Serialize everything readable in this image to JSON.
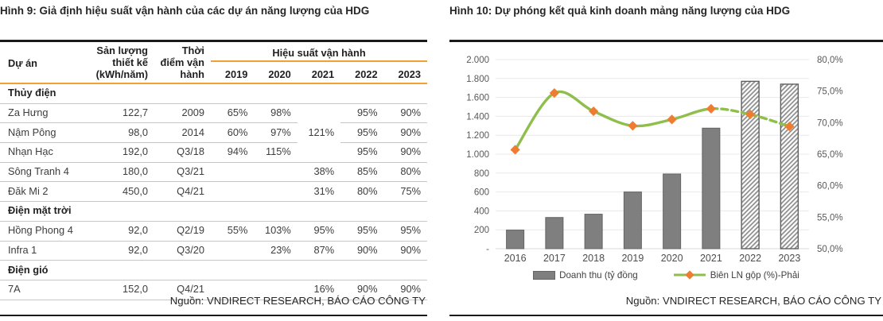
{
  "colors": {
    "accent_orange": "#f0a132",
    "bar_gray": "#7f7f7f",
    "bar_border": "#646464",
    "hatch_stroke": "#8a8a8a",
    "hatch_border": "#5f5f5f",
    "line_green": "#8fbe4d",
    "marker_orange": "#ee7d31",
    "grid_gray": "#e8e8e8",
    "axis_text": "#595959",
    "rule_black": "#1a1a1a"
  },
  "figure9": {
    "title": "Hình 9: Giả định hiệu suất vận hành của các dự án năng lượng của HDG",
    "source": "Nguồn: VNDIRECT RESEARCH, BÁO CÁO CÔNG TY",
    "table": {
      "col_project": "Dự án",
      "col_capacity_lines": [
        "Sản lượng",
        "thiết kế",
        "(kWh/năm)"
      ],
      "col_cod_lines": [
        "Thời",
        "điểm vận",
        "hành"
      ],
      "span_header": "Hiệu suất vận hành",
      "years": [
        "2019",
        "2020",
        "2021",
        "2022",
        "2023"
      ],
      "rows": [
        {
          "section": "Thủy điện"
        },
        {
          "cells": [
            "Za Hưng",
            "122,7",
            "2009",
            "65%",
            "98%",
            {
              "v": "121%",
              "rowspan": 3
            },
            "95%",
            "90%"
          ]
        },
        {
          "cells": [
            "Nậm Pông",
            "98,0",
            "2014",
            "60%",
            "97%",
            null,
            "95%",
            "90%"
          ]
        },
        {
          "cells": [
            "Nhạn Hạc",
            "192,0",
            "Q3/18",
            "94%",
            "115%",
            null,
            "95%",
            "90%"
          ]
        },
        {
          "cells": [
            "Sông Tranh 4",
            "180,0",
            "Q3/21",
            "",
            "",
            "38%",
            "85%",
            "80%"
          ]
        },
        {
          "cells": [
            "Đăk Mi 2",
            "450,0",
            "Q4/21",
            "",
            "",
            "31%",
            "80%",
            "75%"
          ]
        },
        {
          "section": "Điện mặt trời"
        },
        {
          "cells": [
            "Hồng Phong 4",
            "92,0",
            "Q2/19",
            "55%",
            "103%",
            "95%",
            "95%",
            "95%"
          ]
        },
        {
          "cells": [
            "Infra 1",
            "92,0",
            "Q3/20",
            "",
            "23%",
            "87%",
            "90%",
            "90%"
          ]
        },
        {
          "section": "Điện gió"
        },
        {
          "cells": [
            "7A",
            "152,0",
            "Q4/21",
            "",
            "",
            "16%",
            "90%",
            "90%"
          ]
        }
      ]
    }
  },
  "figure10": {
    "title": "Hình 10: Dự phóng kết quả kinh doanh mảng năng lượng của HDG",
    "source": "Nguồn: VNDIRECT RESEARCH, BÁO CÁO CÔNG TY"
  },
  "chart_data": {
    "type": "bar+line",
    "categories": [
      "2016",
      "2017",
      "2018",
      "2019",
      "2020",
      "2021",
      "2022",
      "2023"
    ],
    "series": [
      {
        "name": "Doanh thu (tỷ đồng",
        "type": "bar",
        "axis": "left",
        "values": [
          197,
          330,
          365,
          600,
          790,
          1275,
          1770,
          1740
        ],
        "forecast_from_index": 6
      },
      {
        "name": "Biên LN gộp (%)-Phải",
        "type": "line",
        "axis": "right",
        "values": [
          65.7,
          74.7,
          71.8,
          69.5,
          70.5,
          72.2,
          71.3,
          69.4
        ],
        "dashed_from_index": 5
      }
    ],
    "left_axis": {
      "min": 0,
      "max": 2000,
      "step": 200,
      "tick_labels": [
        "2.000",
        "1.800",
        "1.600",
        "1.400",
        "1.200",
        "1.000",
        "800",
        "600",
        "400",
        "200",
        "-"
      ]
    },
    "right_axis": {
      "min": 50,
      "max": 80,
      "step": 5,
      "tick_labels": [
        "80,0%",
        "75,0%",
        "70,0%",
        "65,0%",
        "60,0%",
        "55,0%",
        "50,0%"
      ]
    },
    "grid": true,
    "legend_position": "bottom"
  }
}
